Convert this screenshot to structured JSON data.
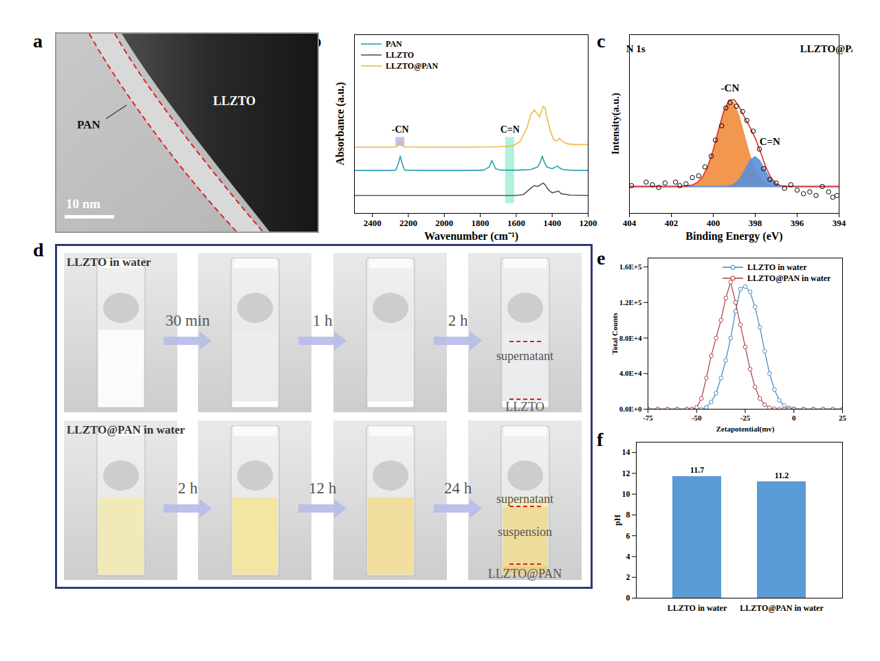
{
  "chart_data": [
    {
      "panel": "a",
      "type": "image",
      "annotations": [
        "PAN",
        "LLZTO",
        "10 nm"
      ]
    },
    {
      "panel": "b",
      "type": "line",
      "xlabel": "Wavenumber (cm⁻¹)",
      "ylabel": "Absorbance (a.u.)",
      "xlim": [
        2500,
        1200
      ],
      "xticks": [
        2400,
        2200,
        2000,
        1800,
        1600,
        1400,
        1200
      ],
      "ylim": [
        0,
        10
      ],
      "tick_labels": "x",
      "legend": "top-left",
      "series": [
        {
          "name": "PAN",
          "color": "#2a9fb0",
          "x": [
            2500,
            2300,
            2270,
            2255,
            2245,
            2235,
            2220,
            2100,
            1900,
            1780,
            1750,
            1740,
            1735,
            1728,
            1715,
            1690,
            1600,
            1520,
            1480,
            1465,
            1455,
            1445,
            1430,
            1400,
            1380,
            1370,
            1360,
            1340,
            1300,
            1200
          ],
          "values": [
            2.4,
            2.4,
            2.42,
            2.8,
            3.2,
            2.8,
            2.42,
            2.4,
            2.4,
            2.42,
            2.6,
            2.85,
            2.95,
            2.8,
            2.5,
            2.42,
            2.42,
            2.45,
            2.6,
            2.9,
            3.2,
            2.9,
            2.6,
            2.5,
            2.6,
            2.65,
            2.55,
            2.45,
            2.42,
            2.4
          ]
        },
        {
          "name": "LLZTO",
          "color": "#555555",
          "x": [
            2500,
            2000,
            1600,
            1560,
            1520,
            1500,
            1480,
            1465,
            1450,
            1440,
            1420,
            1400,
            1380,
            1365,
            1350,
            1300,
            1200
          ],
          "values": [
            1.0,
            1.0,
            1.0,
            1.05,
            1.4,
            1.55,
            1.5,
            1.6,
            1.7,
            1.6,
            1.3,
            1.15,
            1.2,
            1.25,
            1.1,
            1.02,
            1.0
          ]
        },
        {
          "name": "LLZTO@PAN",
          "color": "#f0b840",
          "x": [
            2500,
            2300,
            2265,
            2250,
            2245,
            2240,
            2225,
            2100,
            1900,
            1700,
            1620,
            1580,
            1540,
            1520,
            1500,
            1485,
            1470,
            1460,
            1450,
            1440,
            1430,
            1410,
            1390,
            1375,
            1360,
            1345,
            1320,
            1280,
            1240,
            1200
          ],
          "values": [
            3.7,
            3.7,
            3.72,
            3.95,
            4.0,
            3.9,
            3.72,
            3.7,
            3.7,
            3.72,
            3.78,
            4.0,
            4.8,
            5.5,
            5.8,
            5.6,
            5.4,
            5.7,
            6.0,
            5.9,
            5.4,
            4.6,
            4.1,
            4.05,
            4.2,
            4.05,
            3.9,
            3.85,
            3.85,
            3.85
          ]
        }
      ],
      "highlights": [
        {
          "label": "-CN",
          "color": "#8a8ee0",
          "x": [
            2270,
            2220
          ],
          "y": [
            3.75,
            4.25
          ]
        },
        {
          "label": "C=N",
          "color": "#6fe3c4",
          "x": [
            1660,
            1610
          ],
          "y": [
            0.55,
            4.25
          ]
        }
      ]
    },
    {
      "panel": "c",
      "type": "area",
      "xlabel": "Binding Energy (eV)",
      "ylabel": "Intensity(a.u.)",
      "xlim": [
        404,
        394
      ],
      "xticks": [
        404,
        402,
        400,
        398,
        396,
        394
      ],
      "ylim": [
        0,
        10
      ],
      "tick_labels": "x",
      "series": [
        {
          "type": "area",
          "color": "#f08c3c",
          "x": [
            404,
            401.5,
            401,
            400.75,
            400.5,
            400.25,
            400,
            399.75,
            399.5,
            399.25,
            399,
            398.75,
            398.5,
            398.25,
            398,
            397.75,
            397.5,
            397.25,
            397,
            396.5,
            394
          ],
          "values": [
            1.5,
            1.51,
            1.58,
            1.74,
            2.06,
            2.66,
            3.56,
            4.67,
            5.7,
            6.29,
            6.22,
            5.51,
            4.44,
            3.36,
            2.51,
            1.98,
            1.69,
            1.57,
            1.52,
            1.5,
            1.5
          ]
        },
        {
          "type": "area",
          "color": "#5b8fd6",
          "x": [
            404,
            399.5,
            399.25,
            399,
            398.75,
            398.5,
            398.25,
            398,
            397.75,
            397.5,
            397.25,
            397,
            396.75,
            396.5,
            394
          ],
          "values": [
            1.5,
            1.51,
            1.54,
            1.64,
            1.92,
            2.42,
            2.96,
            3.2,
            2.96,
            2.42,
            1.92,
            1.64,
            1.54,
            1.51,
            1.5
          ]
        },
        {
          "type": "line",
          "color": "#6a8fd0",
          "x": [
            404,
            394
          ],
          "values": [
            1.5,
            1.5
          ]
        },
        {
          "type": "line",
          "color": "#e03c3c",
          "x": [
            404,
            401.5,
            401,
            400.75,
            400.5,
            400.25,
            400,
            399.75,
            399.5,
            399.25,
            399,
            398.75,
            398.5,
            398.25,
            398,
            397.75,
            397.5,
            397.25,
            397,
            396.75,
            396.5,
            394
          ],
          "values": [
            1.5,
            1.51,
            1.58,
            1.74,
            2.06,
            2.66,
            3.56,
            4.67,
            5.71,
            6.33,
            6.36,
            5.93,
            5.36,
            4.82,
            4.21,
            3.44,
            2.61,
            1.99,
            1.66,
            1.54,
            1.51,
            1.5
          ]
        },
        {
          "type": "scatter",
          "marker": "circle",
          "color": "#000000",
          "x": [
            403.9,
            403.2,
            402.9,
            402.6,
            402.3,
            401.8,
            401.6,
            401.3,
            401.0,
            400.7,
            400.4,
            400.1,
            399.9,
            399.6,
            399.4,
            399.2,
            398.9,
            398.6,
            398.4,
            398.1,
            397.8,
            397.6,
            397.3,
            397.0,
            396.6,
            396.3,
            396.0,
            395.7,
            395.4,
            395.1,
            394.8,
            394.5,
            394.3,
            394.1
          ],
          "values": [
            1.55,
            1.75,
            1.6,
            1.45,
            1.7,
            1.75,
            1.55,
            1.65,
            2.0,
            2.1,
            2.6,
            3.2,
            4.1,
            4.9,
            5.9,
            6.2,
            6.0,
            5.7,
            5.2,
            4.6,
            3.6,
            2.5,
            1.9,
            1.7,
            1.4,
            1.6,
            1.3,
            1.1,
            1.2,
            1.0,
            1.5,
            1.2,
            0.9,
            1.0
          ]
        }
      ],
      "annotations": [
        {
          "text": "N 1s",
          "x": 403.7,
          "y": 9.2
        },
        {
          "text": "LLZTO@PAN",
          "x": 394.3,
          "y": 9.2
        },
        {
          "text": "-CN",
          "x": 399.2,
          "y": 7.0
        },
        {
          "text": "C=N",
          "x": 397.3,
          "y": 4.0
        }
      ]
    },
    {
      "panel": "d",
      "type": "image",
      "rows": [
        {
          "title": "LLZTO in water",
          "steps": [
            "30 min",
            "1 h",
            "2 h"
          ],
          "annotations": [
            "supernatant",
            "LLZTO"
          ]
        },
        {
          "title": "LLZTO@PAN in water",
          "steps": [
            "2 h",
            "12 h",
            "24 h"
          ],
          "annotations": [
            "supernatant",
            "suspension",
            "LLZTO@PAN"
          ]
        }
      ]
    },
    {
      "panel": "e",
      "type": "line",
      "marker": "circle",
      "xlabel": "Zetapotential(mv)",
      "ylabel": "Total Counts",
      "xlim": [
        -75,
        25
      ],
      "xticks": [
        -75,
        -50,
        -25,
        0,
        25
      ],
      "ylim": [
        0,
        170000
      ],
      "yticks": [
        {
          "value": 0,
          "label": "0.0E+0"
        },
        {
          "value": 40000,
          "label": "4.0E+4"
        },
        {
          "value": 80000,
          "label": "8.0E+4"
        },
        {
          "value": 120000,
          "label": "1.2E+5"
        },
        {
          "value": 160000,
          "label": "1.6E+5"
        }
      ],
      "legend": "top-right",
      "x": [
        -75,
        -70,
        -65,
        -60,
        -55,
        -52.5,
        -50,
        -47.5,
        -45,
        -42.5,
        -40,
        -37.5,
        -35,
        -32.5,
        -30,
        -27.5,
        -25,
        -22.5,
        -20,
        -17.5,
        -15,
        -12.5,
        -10,
        -7.5,
        -5,
        -2.5,
        0,
        5,
        10,
        15,
        20,
        25
      ],
      "series": [
        {
          "name": "LLZTO in water",
          "color": "#4a8cc4",
          "values": [
            0,
            0,
            0,
            0,
            0,
            0,
            0,
            0,
            2000,
            8000,
            18000,
            35000,
            55000,
            80000,
            110000,
            135000,
            138000,
            132000,
            115000,
            92000,
            65000,
            40000,
            22000,
            10000,
            4000,
            1500,
            500,
            0,
            0,
            0,
            0,
            0
          ]
        },
        {
          "name": "LLZTO@PAN in water",
          "color": "#b04848",
          "values": [
            0,
            0,
            0,
            0,
            0,
            0,
            2000,
            12000,
            35000,
            60000,
            80000,
            100000,
            125000,
            143000,
            120000,
            95000,
            70000,
            45000,
            25000,
            12000,
            5000,
            1500,
            500,
            0,
            0,
            0,
            0,
            0,
            0,
            0,
            0,
            0
          ]
        }
      ]
    },
    {
      "panel": "f",
      "type": "bar",
      "ylabel": "pH",
      "categories": [
        "LLZTO in water",
        "LLZTO@PAN in water"
      ],
      "values": [
        11.7,
        11.2
      ],
      "color": "#5b9bd5",
      "ylim": [
        0,
        15
      ],
      "yticks": [
        0,
        2,
        4,
        6,
        8,
        10,
        12,
        14
      ],
      "data_labels": true
    }
  ]
}
